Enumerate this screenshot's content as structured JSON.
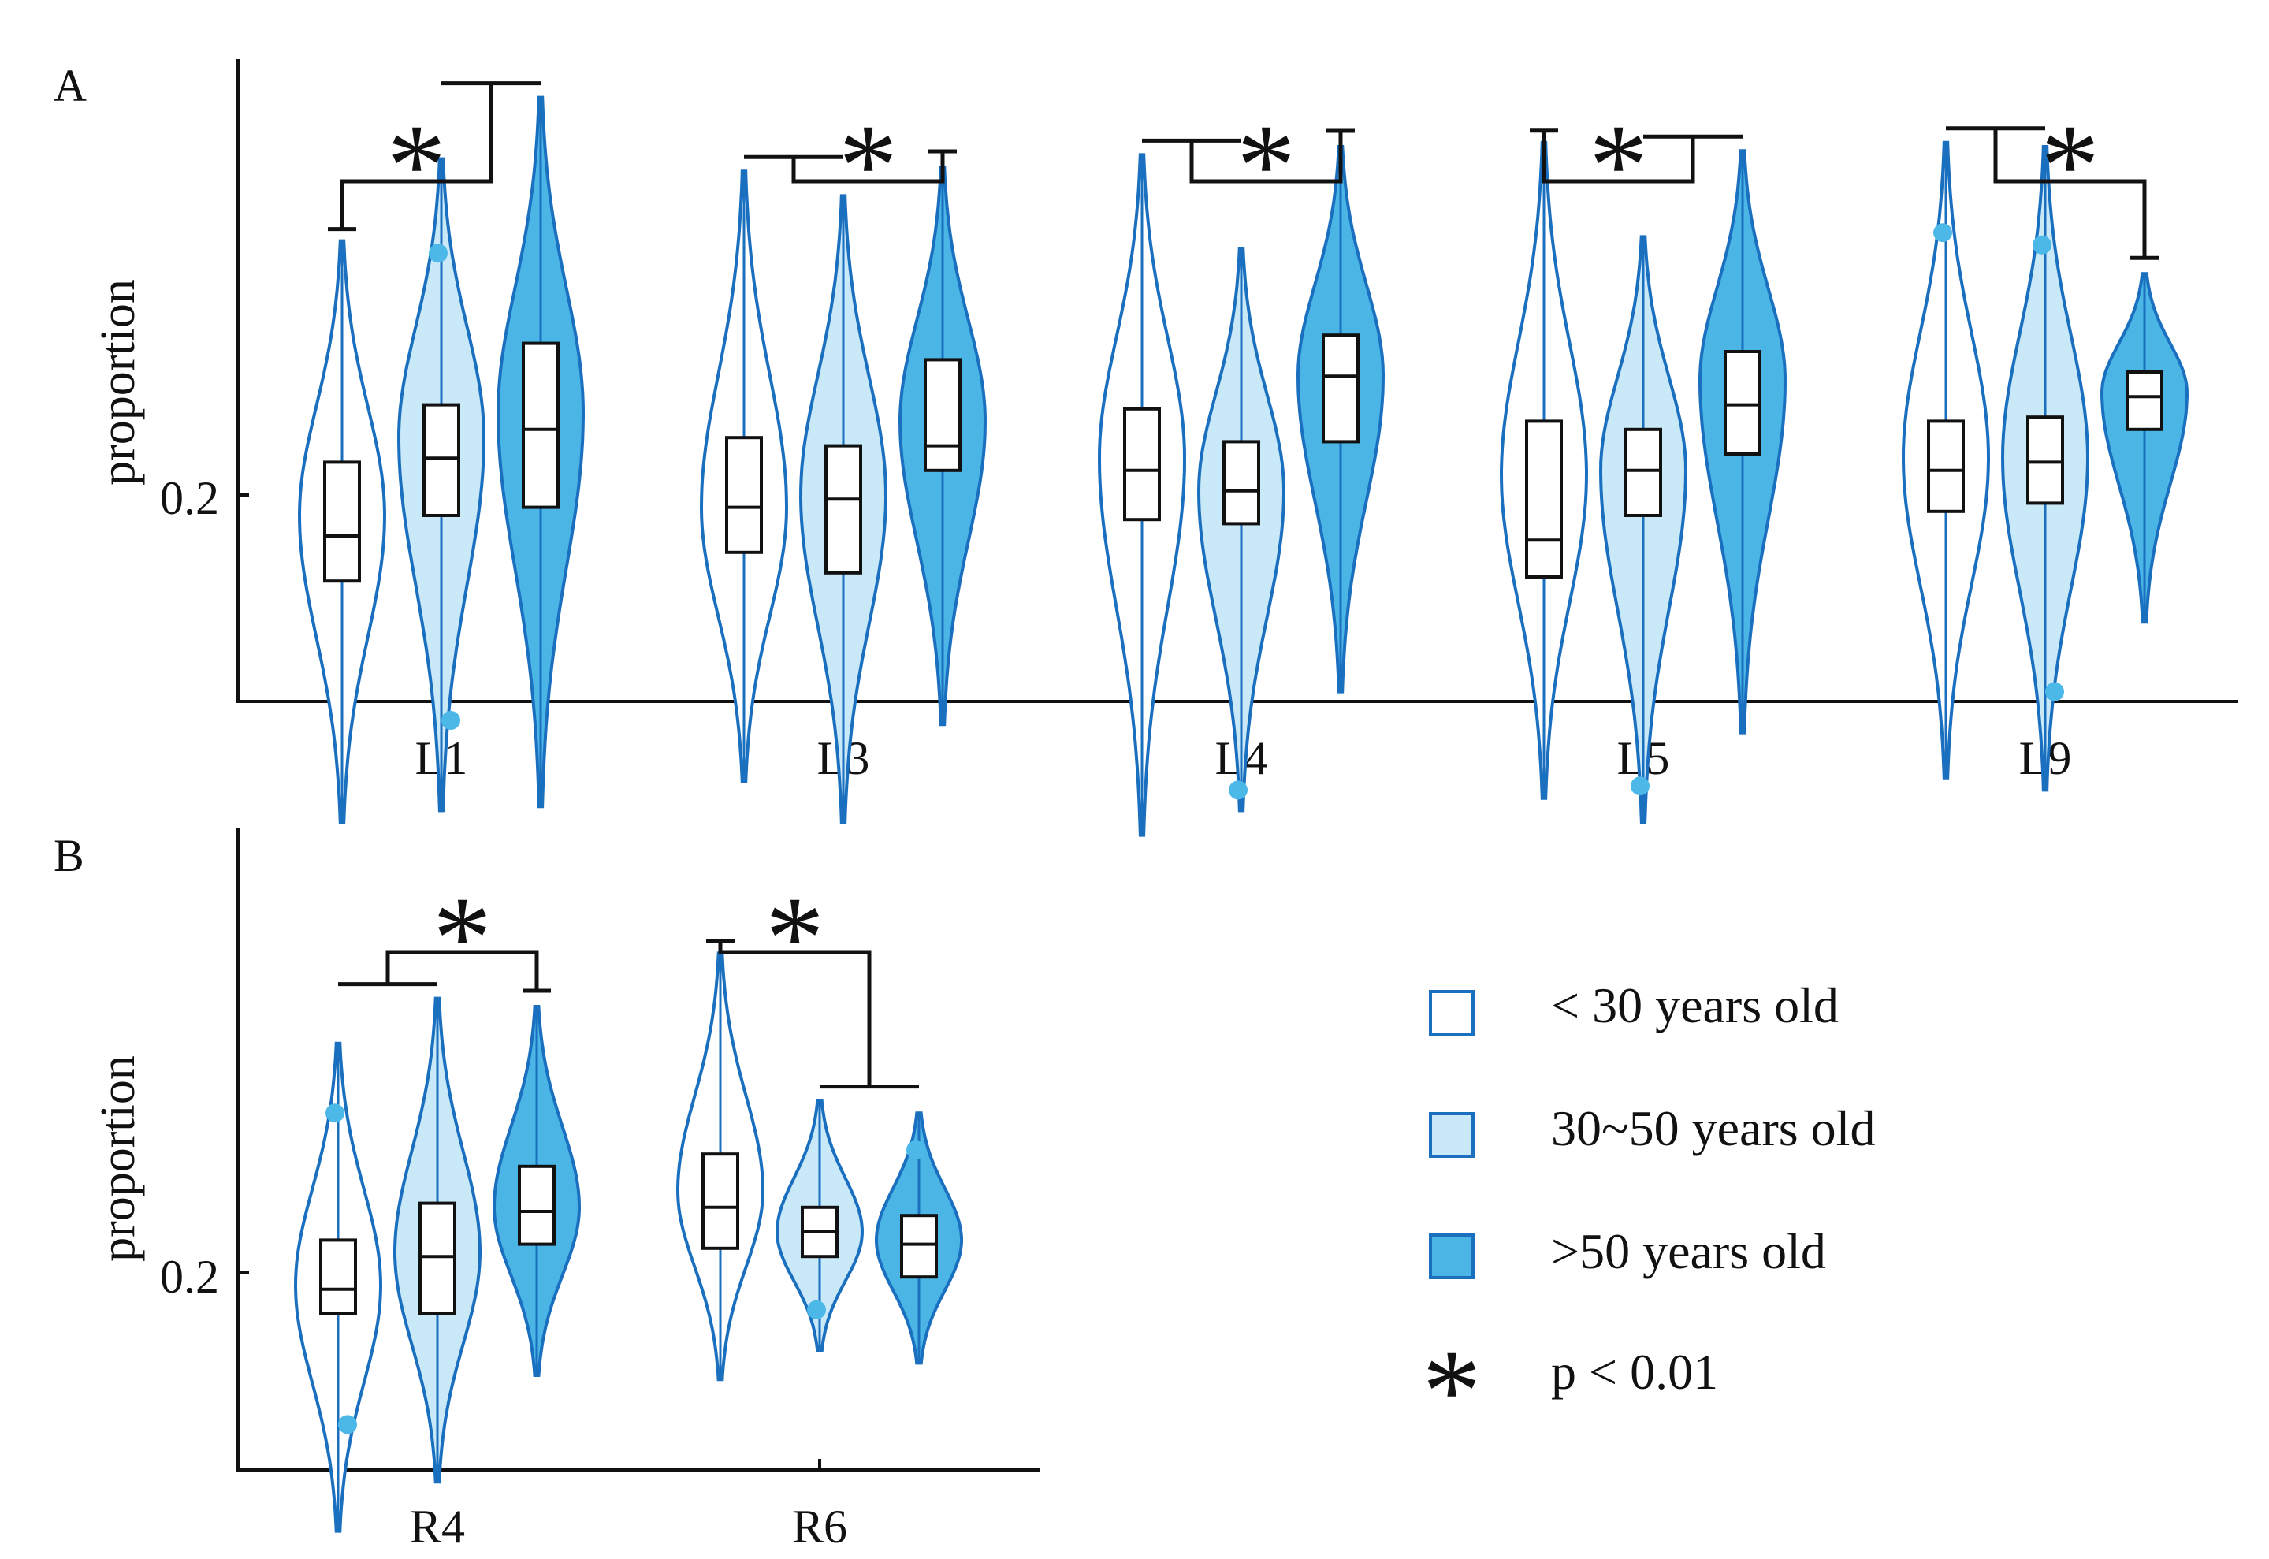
{
  "chart_data": [
    {
      "panel_label": "A",
      "type": "violin",
      "ylabel": "proportion",
      "ytick": 0.2,
      "ytick_label": "0.2",
      "ylim": [
        0.1,
        0.38
      ],
      "categories": [
        "L1",
        "L3",
        "L4",
        "L5",
        "L9"
      ],
      "groups": [
        {
          "category": "L1",
          "bracket": "lt30 vs 30+",
          "violins": [
            {
              "group": "lt30",
              "min": 0.12,
              "q1": 0.179,
              "median": 0.19,
              "q3": 0.208,
              "max": 0.262,
              "mode": 0.195,
              "outliers": []
            },
            {
              "group": "30_50",
              "min": 0.123,
              "q1": 0.195,
              "median": 0.209,
              "q3": 0.222,
              "max": 0.282,
              "mode": 0.214,
              "outliers": [
                0.259,
                0.145
              ]
            },
            {
              "group": "gt50",
              "min": 0.124,
              "q1": 0.197,
              "median": 0.216,
              "q3": 0.237,
              "max": 0.297,
              "mode": 0.22,
              "outliers": []
            }
          ]
        },
        {
          "category": "L3",
          "bracket": "lt50 vs gt50",
          "violins": [
            {
              "group": "lt30",
              "min": 0.13,
              "q1": 0.186,
              "median": 0.197,
              "q3": 0.214,
              "max": 0.279,
              "mode": 0.197,
              "outliers": []
            },
            {
              "group": "30_50",
              "min": 0.12,
              "q1": 0.181,
              "median": 0.199,
              "q3": 0.212,
              "max": 0.273,
              "mode": 0.2,
              "outliers": []
            },
            {
              "group": "gt50",
              "min": 0.144,
              "q1": 0.206,
              "median": 0.212,
              "q3": 0.233,
              "max": 0.28,
              "mode": 0.218,
              "outliers": []
            }
          ]
        },
        {
          "category": "L4",
          "bracket": "lt50 vs gt50",
          "violins": [
            {
              "group": "lt30",
              "min": 0.117,
              "q1": 0.194,
              "median": 0.206,
              "q3": 0.221,
              "max": 0.283,
              "mode": 0.209,
              "outliers": []
            },
            {
              "group": "30_50",
              "min": 0.123,
              "q1": 0.193,
              "median": 0.201,
              "q3": 0.213,
              "max": 0.26,
              "mode": 0.201,
              "outliers": [
                0.128
              ]
            },
            {
              "group": "gt50",
              "min": 0.152,
              "q1": 0.213,
              "median": 0.229,
              "q3": 0.239,
              "max": 0.285,
              "mode": 0.229,
              "outliers": []
            }
          ]
        },
        {
          "category": "L5",
          "bracket": "lt30 vs 30+",
          "violins": [
            {
              "group": "lt30",
              "min": 0.126,
              "q1": 0.18,
              "median": 0.189,
              "q3": 0.218,
              "max": 0.286,
              "mode": 0.205,
              "outliers": []
            },
            {
              "group": "30_50",
              "min": 0.12,
              "q1": 0.195,
              "median": 0.206,
              "q3": 0.216,
              "max": 0.263,
              "mode": 0.206,
              "outliers": [
                0.129
              ]
            },
            {
              "group": "gt50",
              "min": 0.142,
              "q1": 0.21,
              "median": 0.222,
              "q3": 0.235,
              "max": 0.284,
              "mode": 0.228,
              "outliers": []
            }
          ]
        },
        {
          "category": "L9",
          "bracket": "lt50 vs gt50",
          "violins": [
            {
              "group": "lt30",
              "min": 0.131,
              "q1": 0.196,
              "median": 0.206,
              "q3": 0.218,
              "max": 0.286,
              "mode": 0.209,
              "outliers": [
                0.264
              ]
            },
            {
              "group": "30_50",
              "min": 0.128,
              "q1": 0.198,
              "median": 0.208,
              "q3": 0.219,
              "max": 0.285,
              "mode": 0.209,
              "outliers": [
                0.261,
                0.152
              ]
            },
            {
              "group": "gt50",
              "min": 0.169,
              "q1": 0.216,
              "median": 0.224,
              "q3": 0.23,
              "max": 0.254,
              "mode": 0.225,
              "outliers": []
            }
          ]
        }
      ],
      "significance_label": "*"
    },
    {
      "panel_label": "B",
      "type": "violin",
      "ylabel": "proportion",
      "ytick": 0.2,
      "ytick_label": "0.2",
      "ylim": [
        0.1,
        0.38
      ],
      "categories": [
        "R4",
        "R6"
      ],
      "groups": [
        {
          "category": "R4",
          "bracket": "lt50 vs gt50",
          "violins": [
            {
              "group": "lt30",
              "min": 0.137,
              "q1": 0.19,
              "median": 0.196,
              "q3": 0.208,
              "max": 0.256,
              "mode": 0.197,
              "outliers": [
                0.239,
                0.163
              ]
            },
            {
              "group": "30_50",
              "min": 0.149,
              "q1": 0.19,
              "median": 0.204,
              "q3": 0.217,
              "max": 0.267,
              "mode": 0.205,
              "outliers": []
            },
            {
              "group": "gt50",
              "min": 0.175,
              "q1": 0.207,
              "median": 0.215,
              "q3": 0.226,
              "max": 0.265,
              "mode": 0.216,
              "outliers": []
            }
          ]
        },
        {
          "category": "R6",
          "bracket": "lt30 vs 30+",
          "violins": [
            {
              "group": "lt30",
              "min": 0.174,
              "q1": 0.206,
              "median": 0.216,
              "q3": 0.229,
              "max": 0.278,
              "mode": 0.22,
              "outliers": []
            },
            {
              "group": "30_50",
              "min": 0.181,
              "q1": 0.204,
              "median": 0.21,
              "q3": 0.216,
              "max": 0.242,
              "mode": 0.21,
              "outliers": [
                0.191
              ]
            },
            {
              "group": "gt50",
              "min": 0.178,
              "q1": 0.199,
              "median": 0.207,
              "q3": 0.214,
              "max": 0.239,
              "mode": 0.208,
              "outliers": [
                0.23
              ]
            }
          ]
        }
      ],
      "significance_label": "*"
    }
  ],
  "legend": {
    "items": [
      {
        "key": "lt30",
        "label": "< 30 years old"
      },
      {
        "key": "30_50",
        "label": "30~50 years old"
      },
      {
        "key": "gt50",
        "label": ">50 years old"
      },
      {
        "key": "sig",
        "label": "p < 0.01"
      }
    ]
  },
  "colors": {
    "outline": "#1a6fbf",
    "lt30_fill": "#ffffff",
    "30_50_fill": "#c9e8f8",
    "gt50_fill": "#4bb5e6",
    "outlier": "#4cb8e8",
    "box": "#111111",
    "significance": "#ee1111"
  }
}
